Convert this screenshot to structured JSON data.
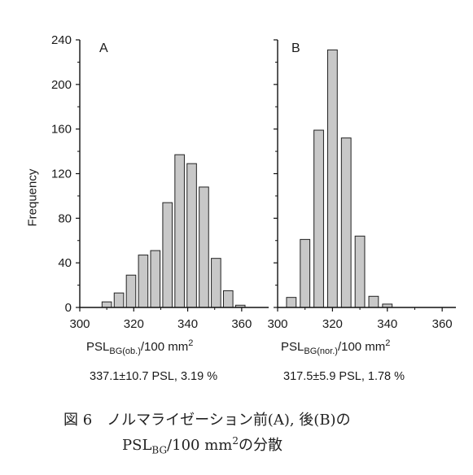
{
  "figure": {
    "caption_line1": "図 6　ノルマライゼーション前(A), 後(B)の",
    "caption_line2_main": "PSL",
    "caption_line2_sub": "BG",
    "caption_line2_mid": "/100 mm",
    "caption_line2_sup": "2",
    "caption_line2_end": "の分散"
  },
  "chart_data": [
    {
      "type": "bar",
      "panel_label": "A",
      "ylabel": "Frequency",
      "xlabel_main": "PSL",
      "xlabel_sub": "BG(ob.)",
      "xlabel_mid": "/100 mm",
      "xlabel_sup": "2",
      "stats": "337.1±10.7 PSL, 3.19 %",
      "xlim": [
        300,
        370
      ],
      "ylim": [
        0,
        240
      ],
      "xticks": [
        300,
        320,
        340,
        360
      ],
      "yticks": [
        0,
        40,
        80,
        120,
        160,
        200,
        240
      ],
      "bin_width": 3.5,
      "x": [
        310,
        314.5,
        319,
        323.5,
        328,
        332.5,
        337,
        341.5,
        346,
        350.5,
        355,
        359.5,
        364
      ],
      "values": [
        5,
        13,
        29,
        47,
        51,
        94,
        137,
        129,
        108,
        44,
        15,
        2,
        0
      ],
      "fill": "#c8c8c8"
    },
    {
      "type": "bar",
      "panel_label": "B",
      "xlabel_main": "PSL",
      "xlabel_sub": "BG(nor.)",
      "xlabel_mid": "/100 mm",
      "xlabel_sup": "2",
      "stats": "317.5±5.9 PSL, 1.78 %",
      "xlim": [
        300,
        365
      ],
      "ylim": [
        0,
        240
      ],
      "xticks": [
        300,
        320,
        340,
        360
      ],
      "bin_width": 3.5,
      "x": [
        305,
        310,
        315,
        320,
        325,
        330,
        335,
        340
      ],
      "values": [
        9,
        61,
        159,
        231,
        152,
        64,
        10,
        3
      ],
      "fill": "#c8c8c8"
    }
  ]
}
